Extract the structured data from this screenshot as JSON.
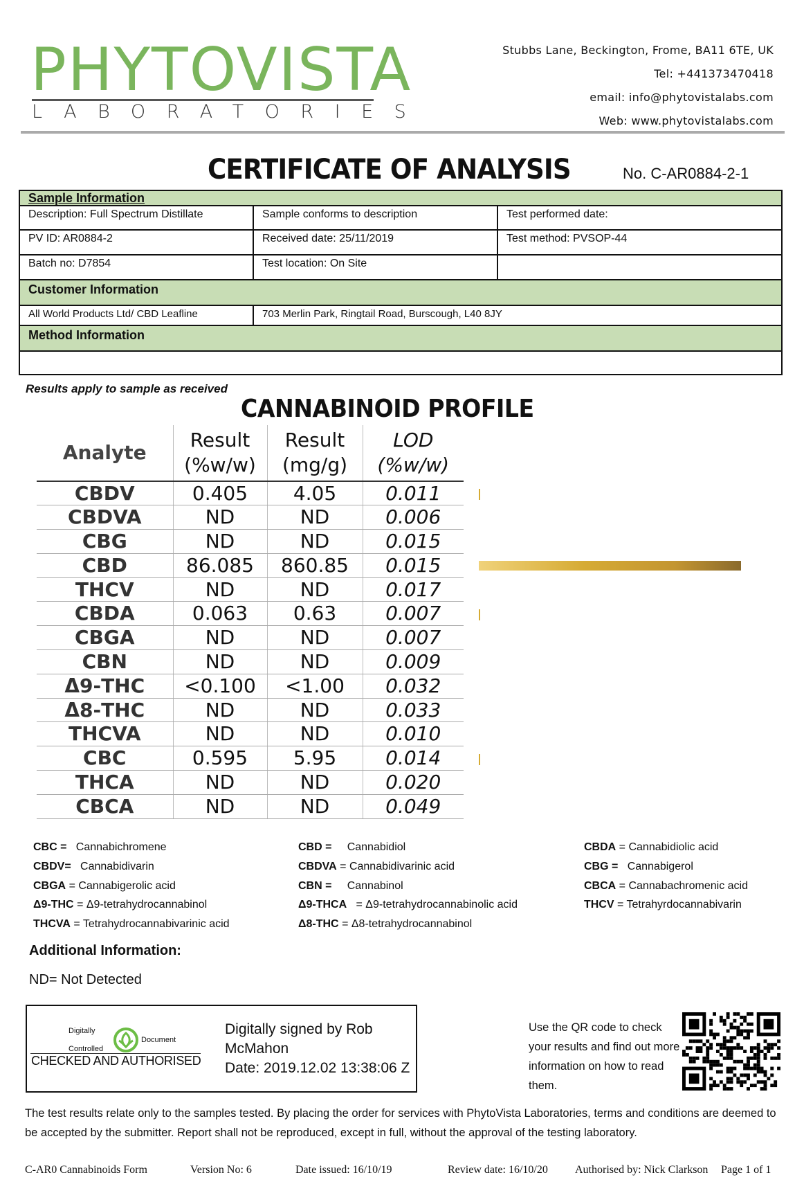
{
  "logo": {
    "name": "PHYTOVISTA",
    "sub": "LABORATORIES",
    "brand_color": "#7ab55c"
  },
  "contact": {
    "address": "Stubbs Lane, Beckington, Frome, BA11 6TE, UK",
    "tel": "Tel: +441373470418",
    "email": "email: info@phytovistalabs.com",
    "web": "Web: www.phytovistalabs.com"
  },
  "title": "CERTIFICATE OF ANALYSIS",
  "cert_no": "No. C-AR0884-2-1",
  "sample_info": {
    "header": "Sample Information",
    "rows": [
      [
        "Description: Full Spectrum Distillate",
        "Sample conforms to description",
        "Test performed date:"
      ],
      [
        "PV ID: AR0884-2",
        "Received date: 25/11/2019",
        "Test method: PVSOP-44"
      ],
      [
        "Batch no: D7854",
        "Test location: On Site",
        ""
      ]
    ]
  },
  "customer_info": {
    "header": "Customer Information",
    "name": "All World Products Ltd/ CBD Leafline",
    "address": "703 Merlin Park, Ringtail Road, Burscough, L40 8JY"
  },
  "method_info": {
    "header": "Method Information",
    "value": ""
  },
  "note": "Results apply to sample as received",
  "profile_title": "CANNABINOID PROFILE",
  "chart_data": {
    "type": "table",
    "columns": [
      "Analyte",
      "Result (%w/w)",
      "Result (mg/g)",
      "LOD (%w/w)"
    ],
    "rows": [
      [
        "CBDV",
        "0.405",
        "4.05",
        "0.011"
      ],
      [
        "CBDVA",
        "ND",
        "ND",
        "0.006"
      ],
      [
        "CBG",
        "ND",
        "ND",
        "0.015"
      ],
      [
        "CBD",
        "86.085",
        "860.85",
        "0.015"
      ],
      [
        "THCV",
        "ND",
        "ND",
        "0.017"
      ],
      [
        "CBDA",
        "0.063",
        "0.63",
        "0.007"
      ],
      [
        "CBGA",
        "ND",
        "ND",
        "0.007"
      ],
      [
        "CBN",
        "ND",
        "ND",
        "0.009"
      ],
      [
        "Δ9-THC",
        "<0.100",
        "<1.00",
        "0.032"
      ],
      [
        "Δ8-THC",
        "ND",
        "ND",
        "0.033"
      ],
      [
        "THCVA",
        "ND",
        "ND",
        "0.010"
      ],
      [
        "CBC",
        "0.595",
        "5.95",
        "0.014"
      ],
      [
        "THCA",
        "ND",
        "ND",
        "0.020"
      ],
      [
        "CBCA",
        "ND",
        "ND",
        "0.049"
      ]
    ],
    "bar_series": {
      "type": "bar",
      "unit": "%w/w",
      "values": [
        0.405,
        0,
        0,
        86.085,
        0,
        0.063,
        0,
        0,
        0,
        0,
        0,
        0.595,
        0,
        0
      ],
      "color": "#d6ab34"
    }
  },
  "glossary": [
    [
      [
        "CBC =",
        "  Cannabichromene"
      ],
      [
        "CBDV=",
        "  Cannabidivarin"
      ],
      [
        "CBGA",
        "= Cannabigerolic acid"
      ],
      [
        "Δ9-THC",
        "= Δ9-tetrahydrocannabinol"
      ],
      [
        "THCVA",
        "= Tetrahydrocannabivarinic acid"
      ]
    ],
    [
      [
        "CBD =",
        "    Cannabidiol"
      ],
      [
        "CBDVA",
        "= Cannabidivarinic acid"
      ],
      [
        "CBN =",
        "    Cannabinol"
      ],
      [
        "Δ9-THCA",
        "  = Δ9-tetrahydrocannabinolic acid"
      ],
      [
        "Δ8-THC",
        "= Δ8-tetrahydrocannabinol"
      ]
    ],
    [
      [
        "CBDA",
        "= Cannabidiolic acid"
      ],
      [
        "CBG =",
        "  Cannabigerol"
      ],
      [
        "CBCA",
        "= Cannabachromenic acid"
      ],
      [
        "THCV",
        "= Tetrahyrdocannabivarin"
      ]
    ]
  ],
  "additional": {
    "heading": "Additional Information:",
    "text": "ND= Not Detected"
  },
  "signature": {
    "stamp_top": "Digitally",
    "stamp_right": "Document",
    "stamp_bottom": "Controlled",
    "stamp_caption": "CHECKED AND AUTHORISED",
    "line1": "Digitally signed by Rob",
    "line2": "McMahon",
    "line3": "Date: 2019.12.02 13:38:06 Z"
  },
  "qr_text": "Use the QR code to check your results and find out more information on how to read them.",
  "disclaimer": "The test results relate only to the samples tested.  By placing the order for services with PhytoVista Laboratories, terms and conditions are deemed to be accepted by the submitter. Report shall not be reproduced, except in full, without the approval of the testing laboratory.",
  "footer": {
    "form": "C-AR0 Cannabinoids Form",
    "version": "Version No:   6",
    "issued": "Date issued: 16/10/19",
    "review": "Review  date: 16/10/20",
    "authorised": "Authorised by: Nick Clarkson",
    "page": "Page  1 of 1"
  }
}
